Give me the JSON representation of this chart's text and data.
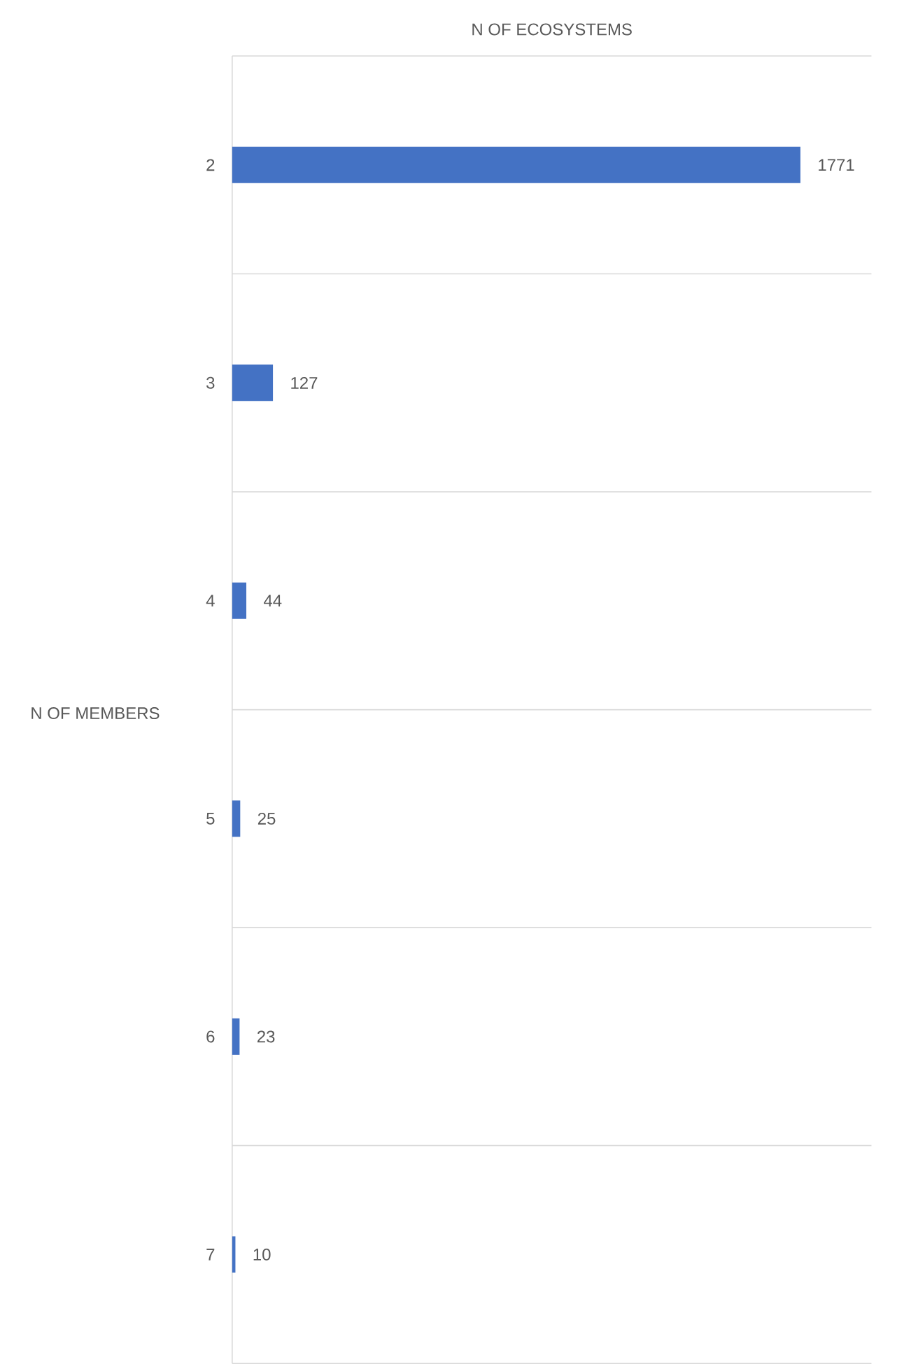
{
  "chart_data": {
    "type": "bar",
    "orientation": "horizontal",
    "title": "N OF ECOSYSTEMS",
    "ylabel": "N OF MEMBERS",
    "categories": [
      "2",
      "3",
      "4",
      "5",
      "6",
      "7"
    ],
    "values": [
      1771,
      127,
      44,
      25,
      23,
      10
    ],
    "color": "#4472c4",
    "data_labels": true,
    "grid": "y"
  }
}
